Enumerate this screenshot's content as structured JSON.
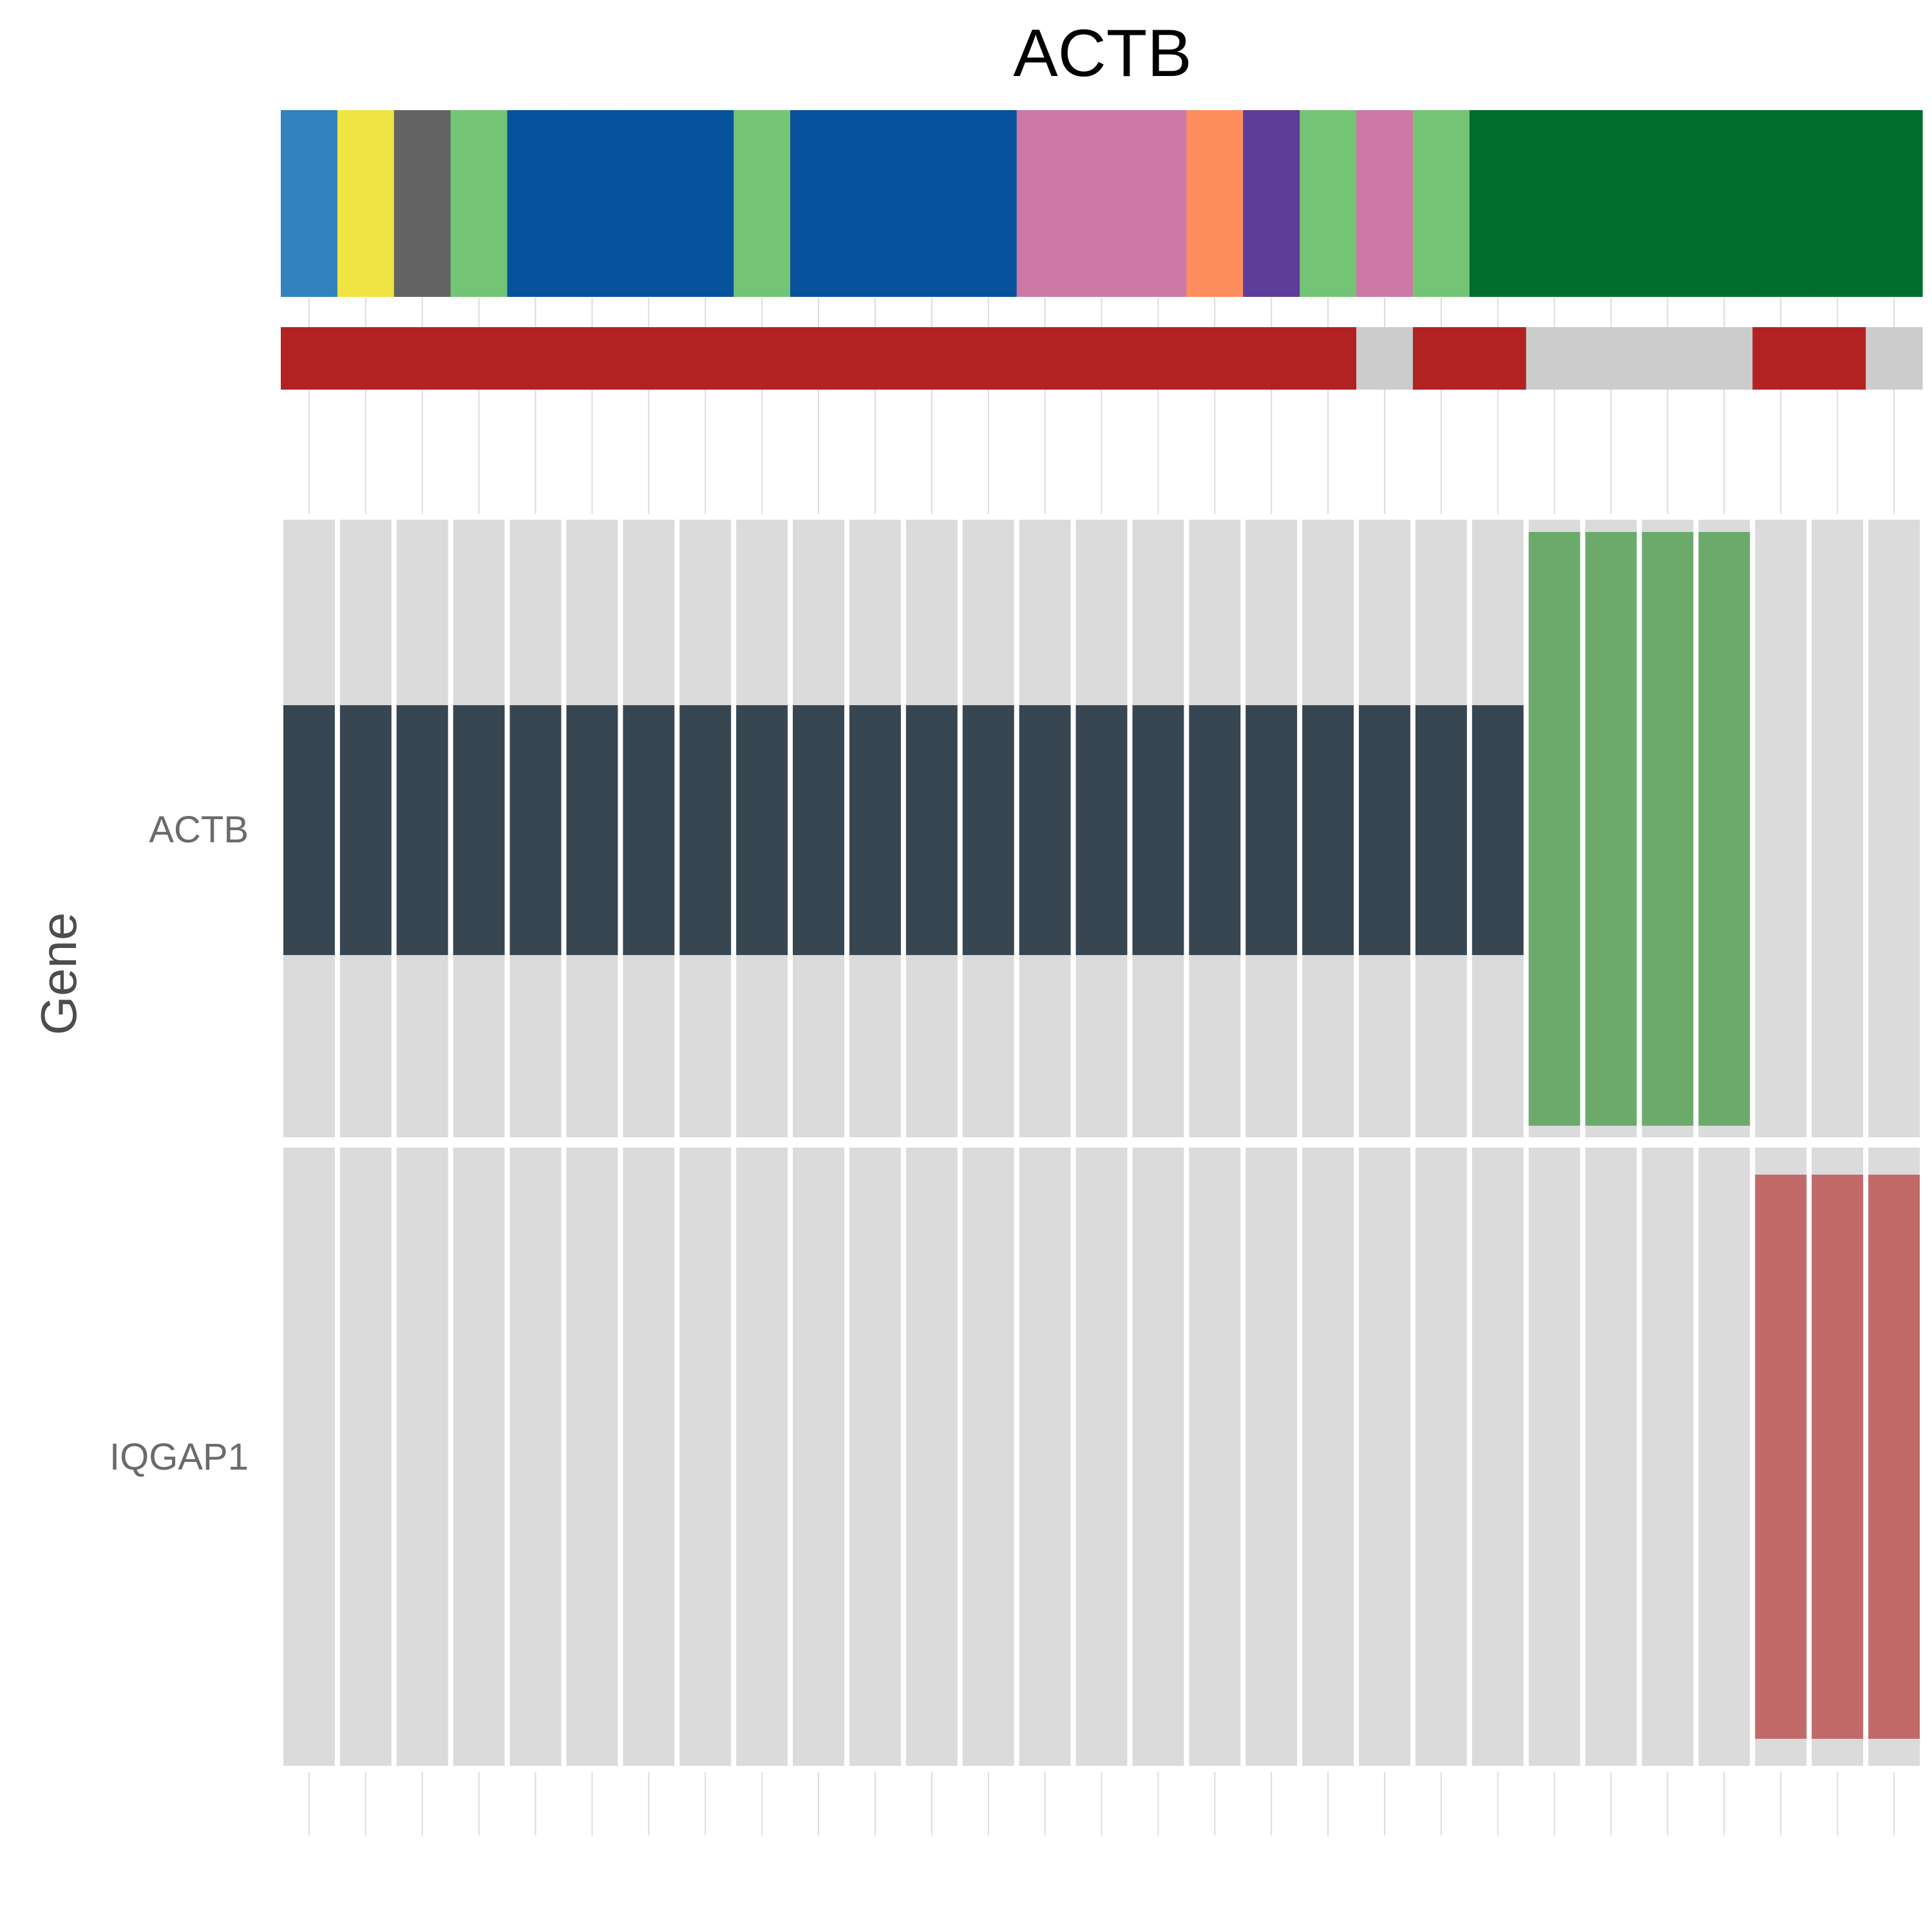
{
  "chart_data": {
    "type": "heatmap",
    "title": "ACTB",
    "ylabel": "Gene",
    "n_samples": 29,
    "rows": [
      "ACTB",
      "IQGAP1"
    ],
    "annotation_tracks": [
      {
        "colors": [
          "#3182bd",
          "#f0e442",
          "#636363",
          "#74c476",
          "#08519c",
          "#08519c",
          "#08519c",
          "#08519c",
          "#74c476",
          "#08519c",
          "#08519c",
          "#08519c",
          "#08519c",
          "#cc79a7",
          "#cc79a7",
          "#cc79a7",
          "#fd8d5c",
          "#5e3c99",
          "#74c476",
          "#cc79a7",
          "#74c476",
          "#006d2c",
          "#006d2c",
          "#006d2c",
          "#006d2c",
          "#006d2c",
          "#006d2c",
          "#006d2c",
          "#006d2c"
        ]
      },
      {
        "colors": [
          "#b22222",
          "#b22222",
          "#b22222",
          "#b22222",
          "#b22222",
          "#b22222",
          "#b22222",
          "#b22222",
          "#b22222",
          "#b22222",
          "#b22222",
          "#b22222",
          "#b22222",
          "#b22222",
          "#b22222",
          "#b22222",
          "#b22222",
          "#b22222",
          "#b22222",
          "#cccccc",
          "#b22222",
          "#b22222",
          "#cccccc",
          "#cccccc",
          "#cccccc",
          "#cccccc",
          "#b22222",
          "#b22222",
          "#cccccc"
        ]
      }
    ],
    "cells": {
      "ACTB": [
        "dark",
        "dark",
        "dark",
        "dark",
        "dark",
        "dark",
        "dark",
        "dark",
        "dark",
        "dark",
        "dark",
        "dark",
        "dark",
        "dark",
        "dark",
        "dark",
        "dark",
        "dark",
        "dark",
        "dark",
        "dark",
        "dark",
        "green",
        "green",
        "green",
        "green",
        "none",
        "none",
        "none"
      ],
      "IQGAP1": [
        "none",
        "none",
        "none",
        "none",
        "none",
        "none",
        "none",
        "none",
        "none",
        "none",
        "none",
        "none",
        "none",
        "none",
        "none",
        "none",
        "none",
        "none",
        "none",
        "none",
        "none",
        "none",
        "none",
        "none",
        "none",
        "none",
        "red",
        "red",
        "red"
      ]
    },
    "cell_colors": {
      "none": "#dbdbdb",
      "dark": "#374651",
      "green": "#6caa6c",
      "red": "#c26a6a"
    },
    "grid": true,
    "legend": "none"
  }
}
